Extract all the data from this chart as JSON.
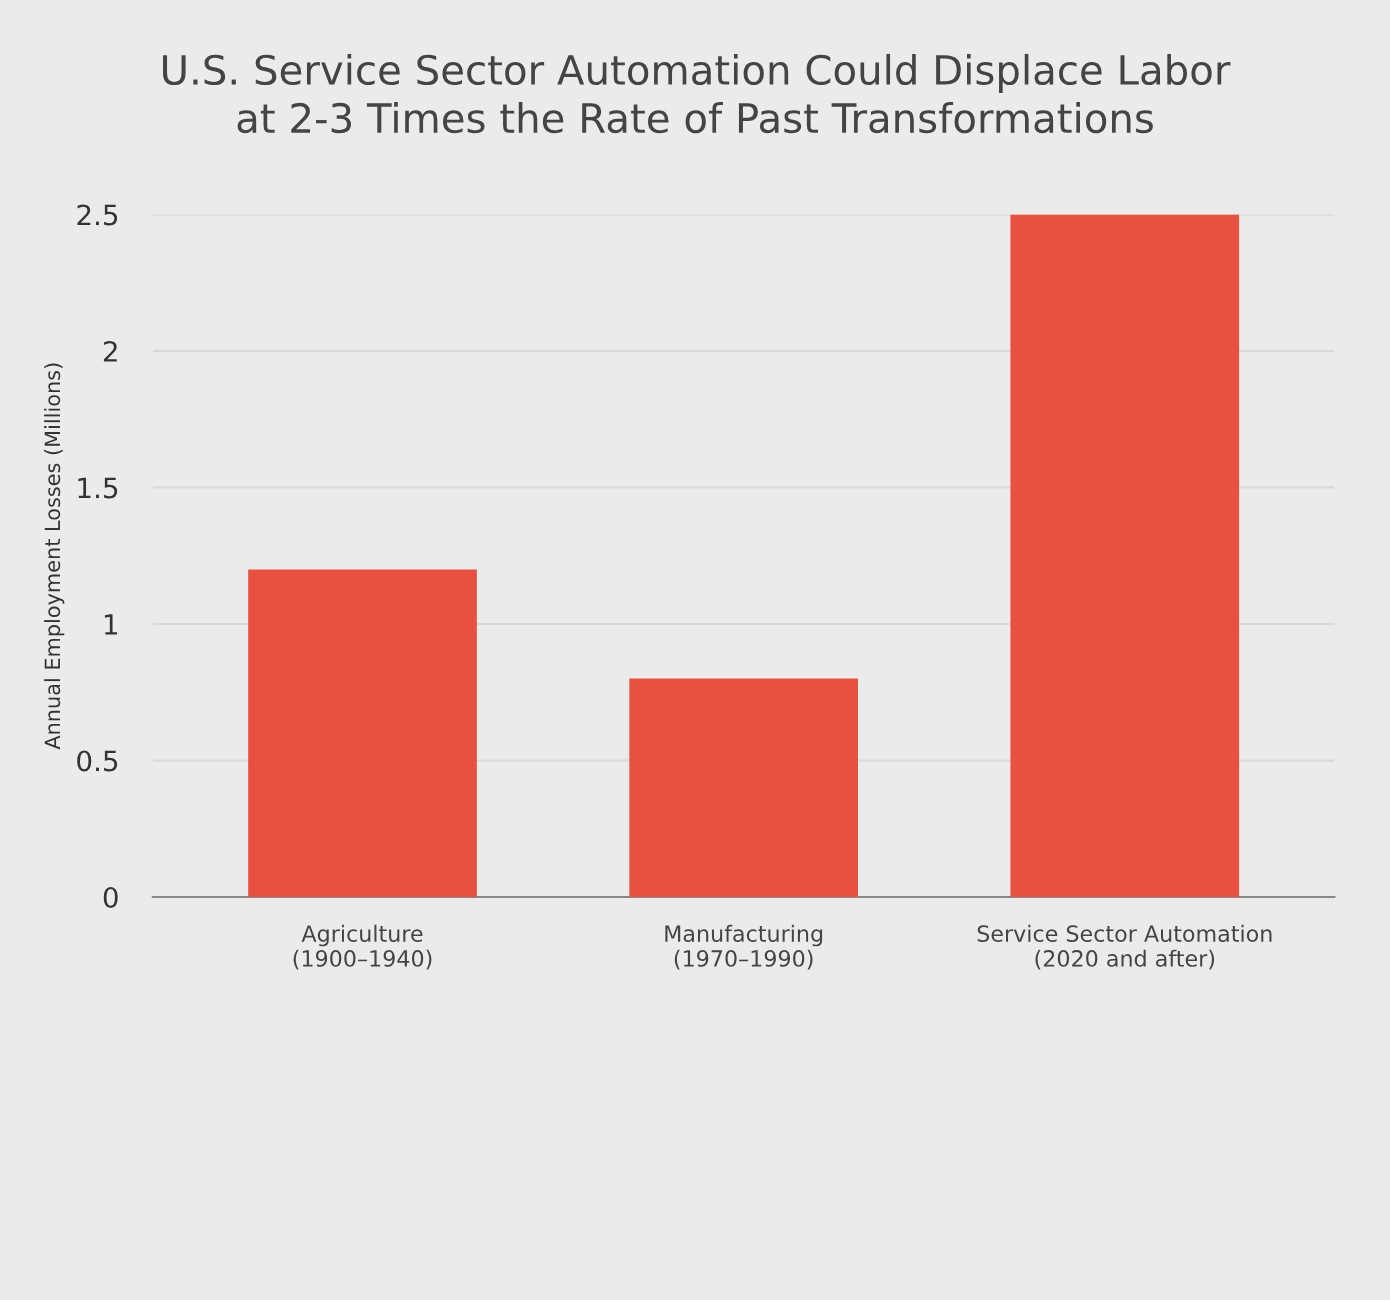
{
  "chart_data": {
    "type": "bar",
    "title": "U.S. Service Sector Automation Could Displace Labor\nat 2-3 Times the Rate of Past Transformations",
    "ylabel": "Annual Employment Losses (Millions)",
    "categories": [
      "Agriculture\n(1900–1940)",
      "Manufacturing\n(1970–1990)",
      "Service Sector Automation\n(2020 and after)"
    ],
    "values": [
      1.2,
      0.8,
      2.5
    ],
    "color": "#e8513f",
    "ylim": [
      0,
      2.5
    ],
    "yticks": [
      0,
      0.5,
      1,
      1.5,
      2,
      2.5
    ],
    "grid": "y"
  }
}
